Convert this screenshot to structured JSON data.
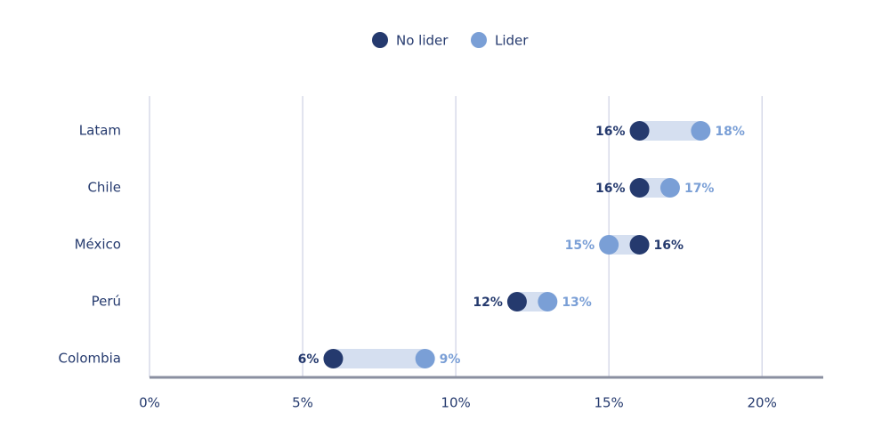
{
  "chart_data": {
    "type": "dumbbell",
    "categories": [
      "Latam",
      "Chile",
      "México",
      "Perú",
      "Colombia"
    ],
    "series": [
      {
        "name": "No lider",
        "color": "#253a6e",
        "values": [
          16,
          16,
          16,
          12,
          6
        ],
        "value_labels": [
          "16%",
          "16%",
          "16%",
          "12%",
          "6%"
        ]
      },
      {
        "name": "Lider",
        "color": "#7a9fd6",
        "values": [
          18,
          17,
          15,
          13,
          9
        ],
        "value_labels": [
          "18%",
          "17%",
          "15%",
          "13%",
          "9%"
        ]
      }
    ],
    "band_color": "#d5dff0",
    "xlim": [
      0,
      22
    ],
    "xticks": [
      {
        "value": 0,
        "label": "0%"
      },
      {
        "value": 5,
        "label": "5%"
      },
      {
        "value": 10,
        "label": "10%"
      },
      {
        "value": 15,
        "label": "15%"
      },
      {
        "value": 20,
        "label": "20%"
      }
    ],
    "grid": true,
    "legend": "top"
  }
}
